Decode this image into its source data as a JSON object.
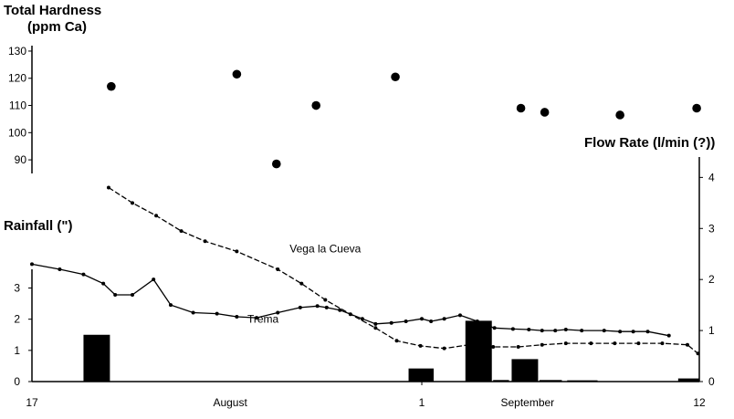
{
  "chart_data": {
    "type": "combo",
    "hardness_title": [
      "Total Hardness",
      "(ppm Ca)"
    ],
    "rainfall_title": "Rainfall (\")",
    "flow_title": "Flow Rate (l/min (?))",
    "x_tick_labels": [
      {
        "x": 0,
        "label": "17"
      },
      {
        "x": 15,
        "label": "August"
      },
      {
        "x": 29.5,
        "label": "1"
      },
      {
        "x": 37.5,
        "label": "September"
      },
      {
        "x": 50.5,
        "label": "12"
      }
    ],
    "xlim": [
      0,
      50.5
    ],
    "hardness": {
      "ylim": [
        85,
        132
      ],
      "ticks": [
        90,
        100,
        110,
        120,
        130
      ],
      "x": [
        6,
        15.5,
        18.5,
        21.5,
        27.5,
        37,
        38.8,
        44.5,
        50.3
      ],
      "y": [
        117,
        121.5,
        88.5,
        110,
        120.5,
        109,
        107.5,
        106.5,
        109
      ]
    },
    "rainfall": {
      "ylim": [
        0,
        3.6
      ],
      "ticks": [
        0,
        1,
        2,
        3
      ],
      "bars": [
        {
          "x0": 3.9,
          "x1": 5.9,
          "value": 1.5
        },
        {
          "x0": 28.5,
          "x1": 30.4,
          "value": 0.42
        },
        {
          "x0": 32.8,
          "x1": 34.8,
          "value": 1.95
        },
        {
          "x0": 34.9,
          "x1": 36.1,
          "value": 0.05
        },
        {
          "x0": 36.3,
          "x1": 38.3,
          "value": 0.72
        },
        {
          "x0": 38.4,
          "x1": 40.1,
          "value": 0.05
        },
        {
          "x0": 40.5,
          "x1": 42.8,
          "value": 0.04
        },
        {
          "x0": 48.9,
          "x1": 50.5,
          "value": 0.1
        }
      ]
    },
    "flow": {
      "ylim": [
        0,
        4.4
      ],
      "ticks": [
        0,
        1,
        2,
        3,
        4
      ],
      "series": [
        {
          "name": "Vega la Cueva",
          "label_pos": [
            19.5,
            2.53
          ],
          "x": [
            5.8,
            7.6,
            9.4,
            11.3,
            13.1,
            15.5,
            18.6,
            20.4,
            22.2,
            24.1,
            26.0,
            27.6,
            29.4,
            31.2,
            33.1,
            34.9,
            36.8,
            38.6,
            40.4,
            42.3,
            44.1,
            45.9,
            47.7,
            49.6,
            50.4
          ],
          "y": [
            3.8,
            3.5,
            3.25,
            2.95,
            2.75,
            2.55,
            2.2,
            1.92,
            1.6,
            1.32,
            1.05,
            0.8,
            0.7,
            0.65,
            0.72,
            0.68,
            0.68,
            0.72,
            0.75,
            0.75,
            0.75,
            0.75,
            0.75,
            0.72,
            0.55
          ]
        },
        {
          "name": "Trema",
          "label_pos": [
            16.3,
            1.15
          ],
          "x": [
            0,
            2.1,
            3.9,
            5.4,
            6.3,
            7.6,
            9.2,
            10.5,
            12.2,
            14.0,
            15.5,
            17.0,
            18.6,
            20.3,
            21.6,
            22.3,
            23.3,
            25.0,
            26.0,
            27.2,
            28.3,
            29.5,
            30.2,
            31.2,
            32.4,
            33.7,
            35.0,
            36.4,
            37.6,
            38.6,
            39.6,
            40.4,
            41.6,
            43.3,
            44.5,
            45.5,
            46.6,
            48.2
          ],
          "y": [
            2.3,
            2.2,
            2.1,
            1.92,
            1.7,
            1.7,
            2.0,
            1.5,
            1.35,
            1.33,
            1.27,
            1.25,
            1.35,
            1.45,
            1.48,
            1.45,
            1.4,
            1.23,
            1.13,
            1.15,
            1.18,
            1.23,
            1.18,
            1.23,
            1.3,
            1.18,
            1.05,
            1.03,
            1.02,
            1.0,
            1.0,
            1.02,
            1.0,
            1.0,
            0.98,
            0.98,
            0.98,
            0.9
          ]
        }
      ]
    }
  }
}
